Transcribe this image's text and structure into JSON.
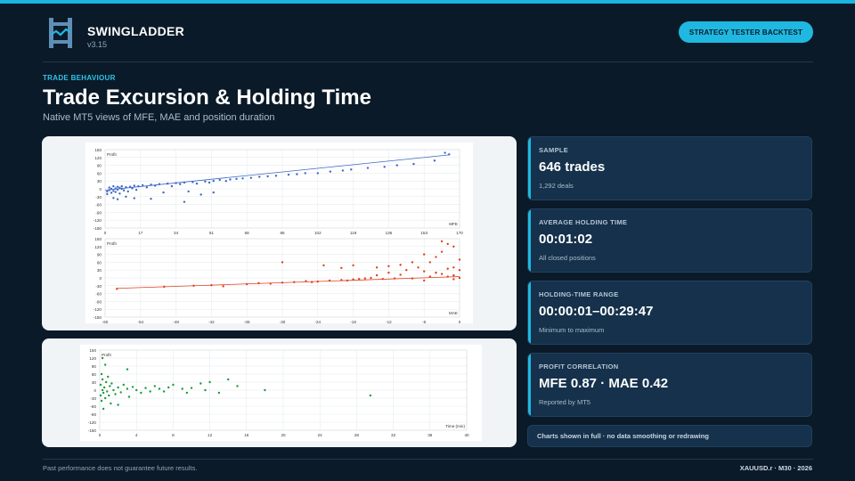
{
  "header": {
    "brand": "SWINGLADDER",
    "version": "v3.15",
    "cta_label": "STRATEGY TESTER BACKTEST"
  },
  "page": {
    "kicker": "TRADE BEHAVIOUR",
    "title": "Trade Excursion & Holding Time",
    "subtitle": "Native MT5 views of MFE, MAE and position duration"
  },
  "cards": [
    {
      "label": "SAMPLE",
      "value": "646 trades",
      "note": "1,292 deals"
    },
    {
      "label": "AVERAGE HOLDING TIME",
      "value": "00:01:02",
      "note": "All closed positions"
    },
    {
      "label": "HOLDING-TIME RANGE",
      "value": "00:00:01–00:29:47",
      "note": "Minimum to maximum"
    },
    {
      "label": "PROFIT CORRELATION",
      "value": "MFE 0.87  ·  MAE 0.42",
      "note": "Reported by MT5"
    }
  ],
  "chart_note": "Charts shown in full · no data smoothing or redrawing",
  "footer": {
    "disclaimer": "Past performance does not guarantee future results.",
    "meta": "XAUUSD.r · M30 · 2026"
  },
  "colors": {
    "accent": "#1fb8e0",
    "mfe": "#3c67c8",
    "mae": "#e0401c",
    "time": "#1c9a3c"
  },
  "chart_data": [
    {
      "type": "scatter",
      "ylabel": "Profit",
      "xlabel": "MFE",
      "xlim": [
        0,
        170
      ],
      "ylim": [
        -150,
        150
      ],
      "xticks": [
        "0",
        "17",
        "34",
        "51",
        "68",
        "85",
        "102",
        "119",
        "136",
        "153",
        "170"
      ],
      "yticks": [
        "150",
        "120",
        "90",
        "60",
        "30",
        "0",
        "-30",
        "-60",
        "-90",
        "-120",
        "-150"
      ],
      "trendline": [
        [
          0,
          -5
        ],
        [
          165,
          130
        ]
      ],
      "points": [
        [
          1,
          -20
        ],
        [
          1,
          -10
        ],
        [
          2,
          -5
        ],
        [
          2,
          5
        ],
        [
          3,
          -15
        ],
        [
          3,
          0
        ],
        [
          4,
          -8
        ],
        [
          4,
          10
        ],
        [
          5,
          -12
        ],
        [
          5,
          2
        ],
        [
          6,
          -3
        ],
        [
          6,
          8
        ],
        [
          7,
          -18
        ],
        [
          7,
          4
        ],
        [
          8,
          0
        ],
        [
          8,
          10
        ],
        [
          9,
          -6
        ],
        [
          10,
          6
        ],
        [
          11,
          -10
        ],
        [
          12,
          8
        ],
        [
          13,
          2
        ],
        [
          14,
          12
        ],
        [
          15,
          -4
        ],
        [
          16,
          10
        ],
        [
          18,
          14
        ],
        [
          20,
          6
        ],
        [
          22,
          16
        ],
        [
          24,
          12
        ],
        [
          26,
          18
        ],
        [
          28,
          -14
        ],
        [
          30,
          20
        ],
        [
          32,
          10
        ],
        [
          34,
          22
        ],
        [
          36,
          18
        ],
        [
          38,
          24
        ],
        [
          40,
          -10
        ],
        [
          42,
          26
        ],
        [
          44,
          20
        ],
        [
          46,
          -22
        ],
        [
          48,
          28
        ],
        [
          50,
          24
        ],
        [
          52,
          30
        ],
        [
          55,
          34
        ],
        [
          58,
          30
        ],
        [
          60,
          36
        ],
        [
          63,
          38
        ],
        [
          66,
          40
        ],
        [
          70,
          42
        ],
        [
          74,
          46
        ],
        [
          78,
          48
        ],
        [
          82,
          50
        ],
        [
          88,
          54
        ],
        [
          92,
          56
        ],
        [
          96,
          60
        ],
        [
          102,
          60
        ],
        [
          108,
          66
        ],
        [
          114,
          70
        ],
        [
          118,
          74
        ],
        [
          126,
          80
        ],
        [
          134,
          84
        ],
        [
          140,
          90
        ],
        [
          148,
          95
        ],
        [
          158,
          108
        ],
        [
          163,
          138
        ],
        [
          165,
          132
        ],
        [
          6,
          -40
        ],
        [
          10,
          -30
        ],
        [
          4,
          -35
        ],
        [
          14,
          -36
        ],
        [
          22,
          -38
        ],
        [
          38,
          -50
        ],
        [
          52,
          -14
        ]
      ]
    },
    {
      "type": "scatter",
      "ylabel": "Profit",
      "xlabel": "MAE",
      "xlim": [
        -60,
        0
      ],
      "ylim": [
        -150,
        150
      ],
      "xticks": [
        "-60",
        "-54",
        "-48",
        "-42",
        "-36",
        "-30",
        "-24",
        "-18",
        "-12",
        "-6",
        "0"
      ],
      "yticks": [
        "150",
        "120",
        "90",
        "60",
        "30",
        "0",
        "-30",
        "-60",
        "-90",
        "-120",
        "-150"
      ],
      "trendline": [
        [
          -58,
          -40
        ],
        [
          0,
          5
        ]
      ],
      "points": [
        [
          -58,
          -42
        ],
        [
          -50,
          -34
        ],
        [
          -45,
          -30
        ],
        [
          -42,
          -28
        ],
        [
          -40,
          -32
        ],
        [
          -36,
          -24
        ],
        [
          -34,
          -20
        ],
        [
          -32,
          -22
        ],
        [
          -30,
          -18
        ],
        [
          -28,
          -16
        ],
        [
          -26,
          -12
        ],
        [
          -24,
          -14
        ],
        [
          -23,
          48
        ],
        [
          -22,
          -10
        ],
        [
          -20,
          -8
        ],
        [
          -19,
          -10
        ],
        [
          -18,
          -6
        ],
        [
          -17,
          -4
        ],
        [
          -16,
          -2
        ],
        [
          -15,
          0
        ],
        [
          -14,
          10
        ],
        [
          -13,
          -4
        ],
        [
          -12,
          20
        ],
        [
          -11,
          -2
        ],
        [
          -10,
          12
        ],
        [
          -9,
          30
        ],
        [
          -8,
          -2
        ],
        [
          -7,
          40
        ],
        [
          -6,
          25
        ],
        [
          -6,
          -10
        ],
        [
          -5,
          60
        ],
        [
          -5,
          5
        ],
        [
          -4,
          80
        ],
        [
          -4,
          20
        ],
        [
          -3,
          100
        ],
        [
          -3,
          15
        ],
        [
          -2,
          130
        ],
        [
          -2,
          35
        ],
        [
          -2,
          5
        ],
        [
          -1,
          120
        ],
        [
          -1,
          40
        ],
        [
          -1,
          10
        ],
        [
          -1,
          -5
        ],
        [
          0,
          70
        ],
        [
          0,
          30
        ],
        [
          0,
          0
        ],
        [
          -8,
          60
        ],
        [
          -10,
          50
        ],
        [
          -12,
          45
        ],
        [
          -14,
          40
        ],
        [
          -6,
          90
        ],
        [
          -3,
          140
        ],
        [
          -30,
          60
        ],
        [
          -20,
          38
        ],
        [
          -18,
          48
        ],
        [
          -25,
          -16
        ]
      ]
    },
    {
      "type": "scatter",
      "ylabel": "Profit",
      "xlabel": "Time (min)",
      "xlim": [
        0,
        40
      ],
      "ylim": [
        -150,
        150
      ],
      "xticks": [
        "0",
        "4",
        "8",
        "12",
        "16",
        "20",
        "24",
        "28",
        "32",
        "36",
        "40"
      ],
      "yticks": [
        "150",
        "120",
        "90",
        "60",
        "30",
        "0",
        "-30",
        "-60",
        "-90",
        "-120",
        "-150"
      ],
      "points": [
        [
          0.1,
          20
        ],
        [
          0.1,
          -20
        ],
        [
          0.2,
          60
        ],
        [
          0.2,
          -40
        ],
        [
          0.3,
          0
        ],
        [
          0.3,
          40
        ],
        [
          0.4,
          -10
        ],
        [
          0.5,
          10
        ],
        [
          0.6,
          -30
        ],
        [
          0.7,
          30
        ],
        [
          0.8,
          -5
        ],
        [
          0.9,
          50
        ],
        [
          1,
          -20
        ],
        [
          1.1,
          15
        ],
        [
          1.2,
          -50
        ],
        [
          1.3,
          25
        ],
        [
          1.5,
          0
        ],
        [
          1.7,
          -15
        ],
        [
          2,
          10
        ],
        [
          2.3,
          -8
        ],
        [
          2.6,
          20
        ],
        [
          3,
          5
        ],
        [
          3.2,
          -25
        ],
        [
          3.6,
          12
        ],
        [
          4,
          0
        ],
        [
          4.5,
          -10
        ],
        [
          5,
          8
        ],
        [
          5.5,
          -5
        ],
        [
          6,
          15
        ],
        [
          6.5,
          5
        ],
        [
          7,
          -5
        ],
        [
          7.5,
          10
        ],
        [
          8,
          20
        ],
        [
          9,
          5
        ],
        [
          9.5,
          -10
        ],
        [
          10,
          8
        ],
        [
          11,
          25
        ],
        [
          11.5,
          0
        ],
        [
          12,
          30
        ],
        [
          13,
          -10
        ],
        [
          14,
          40
        ],
        [
          15,
          15
        ],
        [
          18,
          0
        ],
        [
          29.5,
          -20
        ],
        [
          0.3,
          120
        ],
        [
          0.6,
          95
        ],
        [
          0.4,
          -70
        ],
        [
          3,
          78
        ],
        [
          2,
          -55
        ]
      ]
    }
  ]
}
